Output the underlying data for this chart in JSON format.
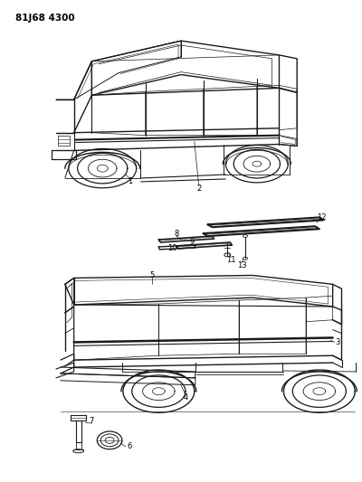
{
  "title": "81J68 4300",
  "background_color": "#ffffff",
  "line_color": "#1a1a1a",
  "text_color": "#000000",
  "figsize": [
    4.0,
    5.33
  ],
  "dpi": 100
}
